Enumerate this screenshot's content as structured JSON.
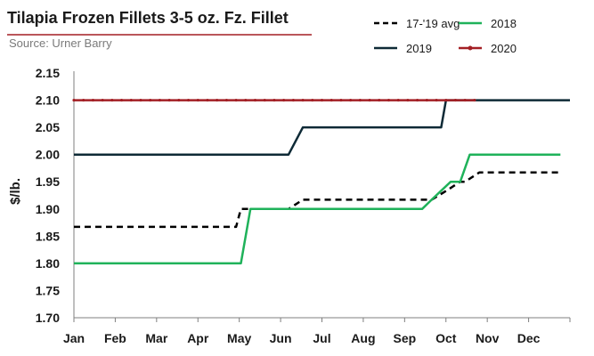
{
  "chart_data": {
    "type": "line",
    "title": "Tilapia  Frozen Fillets 3-5 oz. Fz. Fillet",
    "subtitle": "Source: Urner  Barry",
    "xlabel": "",
    "ylabel": "$/lb.",
    "ylim": [
      1.7,
      2.15
    ],
    "yticks": [
      "2.15",
      "2.10",
      "2.05",
      "2.00",
      "1.95",
      "1.90",
      "1.85",
      "1.80",
      "1.75",
      "1.70"
    ],
    "categories": [
      "Jan",
      "Feb",
      "Mar",
      "Apr",
      "May",
      "Jun",
      "Jul",
      "Aug",
      "Sep",
      "Oct",
      "Nov",
      "Dec"
    ],
    "x_unit": "week",
    "x_range": [
      0,
      52
    ],
    "grid": false,
    "legend_position": "top-right",
    "series": [
      {
        "name": "17-'19 avg",
        "color": "#000000",
        "style": "dashed",
        "x": [
          0,
          17,
          17.5,
          22.5,
          24,
          27,
          37.5,
          39,
          40.5,
          41,
          42.5,
          51
        ],
        "y": [
          1.867,
          1.867,
          1.9,
          1.9,
          1.917,
          1.917,
          1.917,
          1.933,
          1.95,
          1.95,
          1.967,
          1.967
        ]
      },
      {
        "name": "2018",
        "color": "#1fb25a",
        "style": "solid",
        "x": [
          0,
          17.5,
          18.5,
          36.5,
          37.5,
          39.5,
          40,
          40.5,
          41.5,
          51
        ],
        "y": [
          1.8,
          1.8,
          1.9,
          1.9,
          1.917,
          1.95,
          1.95,
          1.95,
          2.0,
          2.0
        ]
      },
      {
        "name": "2019",
        "color": "#0e2a36",
        "style": "solid",
        "x": [
          0,
          22.5,
          24,
          38.5,
          39,
          52
        ],
        "y": [
          2.0,
          2.0,
          2.05,
          2.05,
          2.1,
          2.1
        ]
      },
      {
        "name": "2020",
        "color": "#a31f24",
        "style": "solid-marker",
        "x": [
          0,
          1,
          2,
          3,
          4,
          5,
          6,
          7,
          8,
          9,
          10,
          11,
          12,
          13,
          14,
          15,
          16,
          17,
          18,
          19,
          20,
          21,
          22,
          23,
          24,
          25,
          26,
          27,
          28,
          29,
          30,
          31,
          32,
          33,
          34,
          35,
          36,
          37,
          38,
          39,
          40,
          41,
          42
        ],
        "y": [
          2.1,
          2.1,
          2.1,
          2.1,
          2.1,
          2.1,
          2.1,
          2.1,
          2.1,
          2.1,
          2.1,
          2.1,
          2.1,
          2.1,
          2.1,
          2.1,
          2.1,
          2.1,
          2.1,
          2.1,
          2.1,
          2.1,
          2.1,
          2.1,
          2.1,
          2.1,
          2.1,
          2.1,
          2.1,
          2.1,
          2.1,
          2.1,
          2.1,
          2.1,
          2.1,
          2.1,
          2.1,
          2.1,
          2.1,
          2.1,
          2.1,
          2.1,
          2.1
        ]
      }
    ],
    "accent_color": "#a31f24"
  }
}
